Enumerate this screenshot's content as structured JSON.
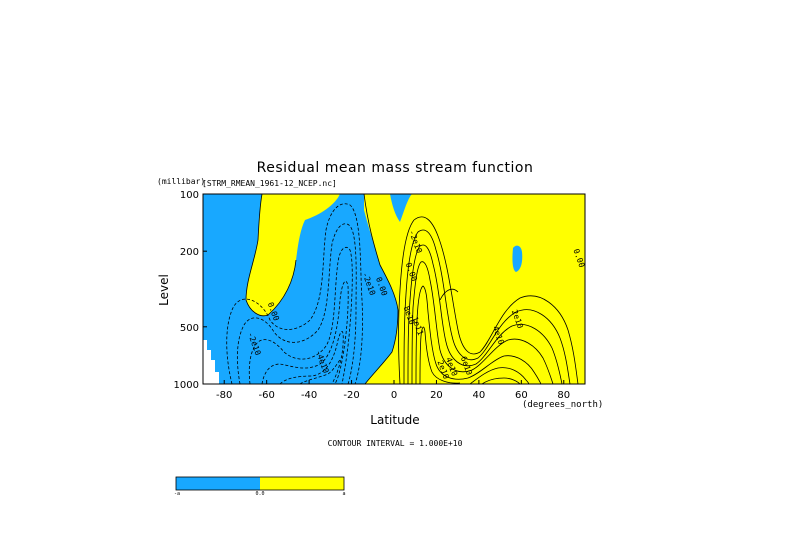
{
  "chart_data": {
    "type": "heatmap",
    "title": "Residual mean mass stream function",
    "dataset_label": "[STRM_RMEAN_1961-12_NCEP.nc]",
    "xlabel": "Latitude",
    "xunits": "(degrees_north)",
    "ylabel": "Level",
    "yunits": "(millibar)",
    "xlim": [
      -90,
      90
    ],
    "ylim": [
      1000,
      100
    ],
    "yscale": "log",
    "x_ticks": [
      -80,
      -60,
      -40,
      -20,
      0,
      20,
      40,
      60,
      80
    ],
    "y_ticks": [
      100,
      200,
      500,
      1000
    ],
    "fill_colors": {
      "negative": "#18a8ff",
      "positive": "#ffff00"
    },
    "contour_interval_text": "CONTOUR INTERVAL = 1.000E+10",
    "contour_labels": [
      {
        "text": "0.00",
        "x": -58,
        "y": 420
      },
      {
        "text": "-2e10",
        "x": -67,
        "y": 620
      },
      {
        "text": "-4e10",
        "x": -35,
        "y": 770
      },
      {
        "text": "-2e10",
        "x": -13,
        "y": 300
      },
      {
        "text": "0.00",
        "x": -7,
        "y": 310
      },
      {
        "text": "-2e10",
        "x": 9,
        "y": 180
      },
      {
        "text": "0.00",
        "x": 7,
        "y": 260
      },
      {
        "text": "8e10",
        "x": 6,
        "y": 440
      },
      {
        "text": "1e11",
        "x": 10,
        "y": 500
      },
      {
        "text": "2e10",
        "x": 22,
        "y": 850
      },
      {
        "text": "4e10",
        "x": 26,
        "y": 820
      },
      {
        "text": "6e10",
        "x": 33,
        "y": 810
      },
      {
        "text": "4e10",
        "x": 48,
        "y": 560
      },
      {
        "text": "2e10",
        "x": 57,
        "y": 460
      },
      {
        "text": "0.00",
        "x": 86,
        "y": 220
      }
    ],
    "colorbar": {
      "labels": [
        "-a",
        "0.0",
        "a"
      ]
    }
  }
}
